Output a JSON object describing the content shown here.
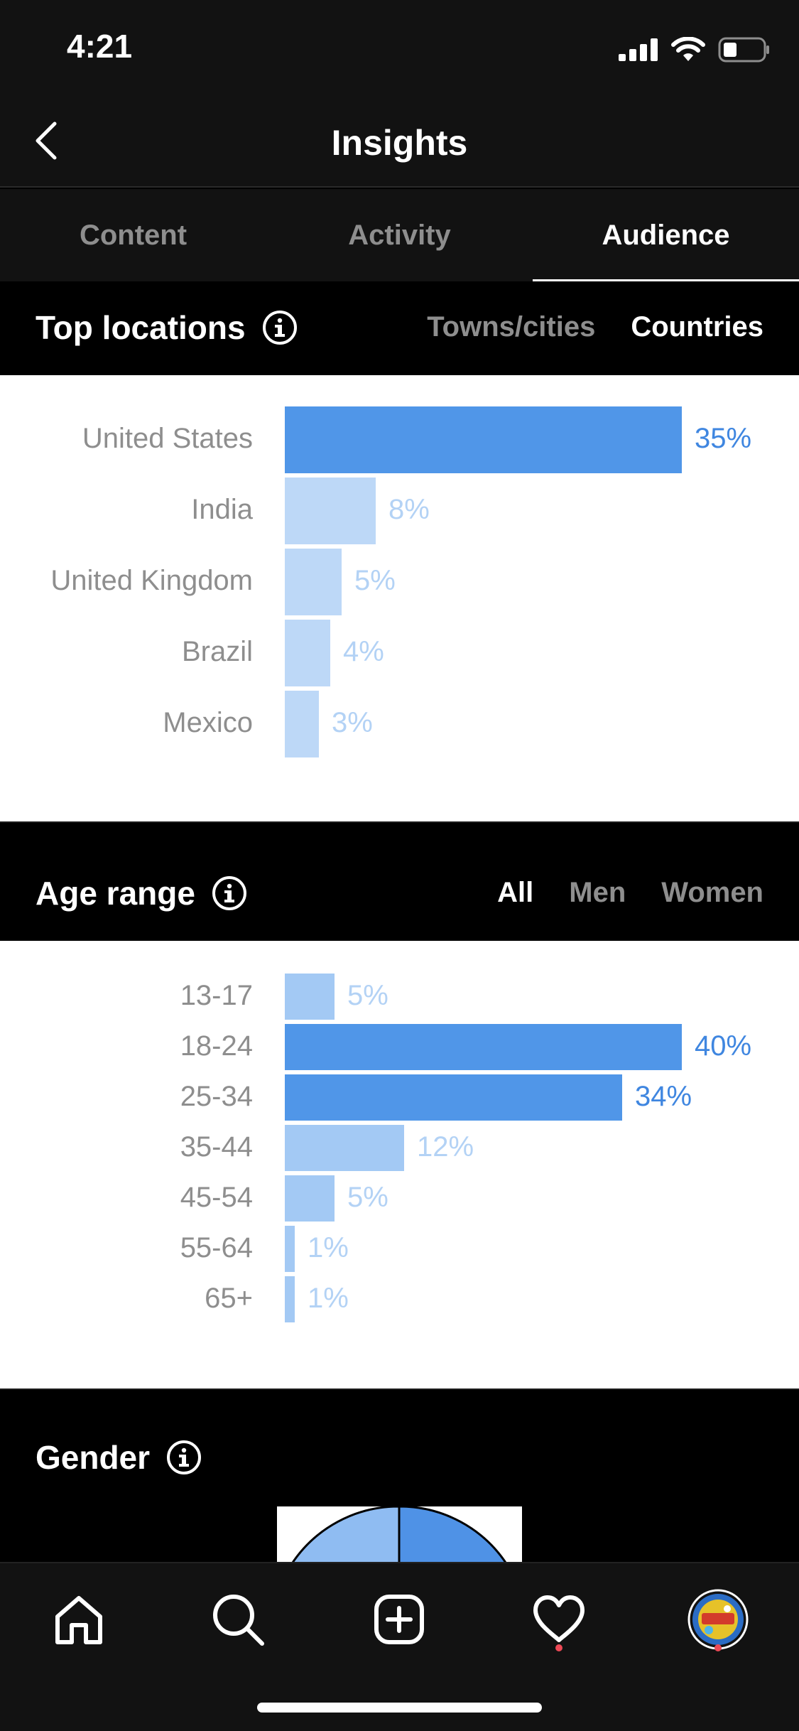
{
  "status_bar": {
    "time": "4:21"
  },
  "header": {
    "title": "Insights"
  },
  "tabs": [
    {
      "label": "Content",
      "active": false
    },
    {
      "label": "Activity",
      "active": false
    },
    {
      "label": "Audience",
      "active": true
    }
  ],
  "top_locations": {
    "title": "Top locations",
    "filters": [
      {
        "label": "Towns/cities",
        "active": false
      },
      {
        "label": "Countries",
        "active": true
      }
    ],
    "rows": [
      {
        "label": "United States",
        "pct_label": "35%",
        "value": 35,
        "highlight": true
      },
      {
        "label": "India",
        "pct_label": "8%",
        "value": 8,
        "highlight": false
      },
      {
        "label": "United Kingdom",
        "pct_label": "5%",
        "value": 5,
        "highlight": false
      },
      {
        "label": "Brazil",
        "pct_label": "4%",
        "value": 4,
        "highlight": false
      },
      {
        "label": "Mexico",
        "pct_label": "3%",
        "value": 3,
        "highlight": false
      }
    ]
  },
  "age_range": {
    "title": "Age range",
    "filters": [
      {
        "label": "All",
        "active": true
      },
      {
        "label": "Men",
        "active": false
      },
      {
        "label": "Women",
        "active": false
      }
    ],
    "rows": [
      {
        "label": "13-17",
        "pct_label": "5%",
        "value": 5,
        "highlight": false
      },
      {
        "label": "18-24",
        "pct_label": "40%",
        "value": 40,
        "highlight": true
      },
      {
        "label": "25-34",
        "pct_label": "34%",
        "value": 34,
        "highlight": true
      },
      {
        "label": "35-44",
        "pct_label": "12%",
        "value": 12,
        "highlight": false
      },
      {
        "label": "45-54",
        "pct_label": "5%",
        "value": 5,
        "highlight": false
      },
      {
        "label": "55-64",
        "pct_label": "1%",
        "value": 1,
        "highlight": false
      },
      {
        "label": "65+",
        "pct_label": "1%",
        "value": 1,
        "highlight": false
      }
    ]
  },
  "gender": {
    "title": "Gender"
  },
  "colors": {
    "bar_highlight": "#5096e8",
    "bar_light": "#bdd8f7",
    "bar_light_age": "#a3c9f4",
    "pct_highlight": "#3f86e0",
    "pct_light": "#b3d2f5",
    "notification": "#ed4956"
  },
  "bottom_nav": [
    {
      "name": "home-icon"
    },
    {
      "name": "search-icon"
    },
    {
      "name": "new-post-icon"
    },
    {
      "name": "heart-icon"
    },
    {
      "name": "profile-avatar"
    }
  ]
}
